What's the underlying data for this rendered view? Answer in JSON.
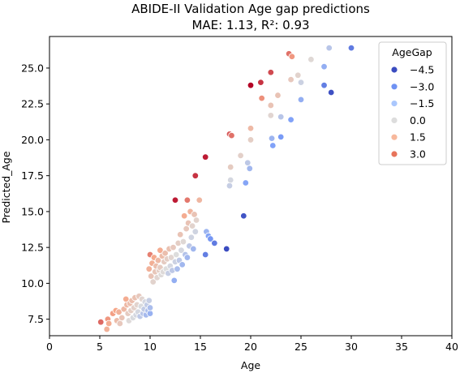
{
  "chart_data": {
    "type": "scatter",
    "title": "ABIDE-II Validation Age gap predictions",
    "subtitle": "MAE: 1.13, R²: 0.93",
    "xlabel": "Age",
    "ylabel": "Predicted_Age",
    "xlim": [
      0,
      40
    ],
    "ylim": [
      6.35,
      27.2
    ],
    "xticks": [
      "0",
      "5",
      "10",
      "15",
      "20",
      "25",
      "30",
      "35",
      "40"
    ],
    "yticks": [
      "7.5",
      "10.0",
      "12.5",
      "15.0",
      "17.5",
      "20.0",
      "22.5",
      "25.0"
    ],
    "grid": false,
    "legend": {
      "title": "AgeGap",
      "placement": "top-right",
      "entries": [
        {
          "label": "−4.5",
          "color": "#3b4cc0"
        },
        {
          "label": "−3.0",
          "color": "#6f92f3"
        },
        {
          "label": "−1.5",
          "color": "#aac7fd"
        },
        {
          "label": "0.0",
          "color": "#dddddd"
        },
        {
          "label": "1.5",
          "color": "#f7b89c"
        },
        {
          "label": "3.0",
          "color": "#e7745b"
        }
      ]
    },
    "hue_range": [
      -4.8,
      3.6
    ],
    "points": [
      [
        5.1,
        7.3,
        2.3
      ],
      [
        5.7,
        6.8,
        1.1
      ],
      [
        5.8,
        7.5,
        1.7
      ],
      [
        5.9,
        7.2,
        1.3
      ],
      [
        6.3,
        7.9,
        1.6
      ],
      [
        6.6,
        8.1,
        1.5
      ],
      [
        6.7,
        7.4,
        0.7
      ],
      [
        6.9,
        8.0,
        1.1
      ],
      [
        7.0,
        7.2,
        0.2
      ],
      [
        7.2,
        7.6,
        0.4
      ],
      [
        7.4,
        8.2,
        0.8
      ],
      [
        7.6,
        8.9,
        1.3
      ],
      [
        7.7,
        8.5,
        0.8
      ],
      [
        7.8,
        7.9,
        0.1
      ],
      [
        7.9,
        7.4,
        -0.5
      ],
      [
        8.0,
        8.6,
        0.6
      ],
      [
        8.1,
        8.1,
        0.0
      ],
      [
        8.2,
        8.8,
        0.6
      ],
      [
        8.3,
        7.6,
        -0.7
      ],
      [
        8.4,
        8.3,
        -0.1
      ],
      [
        8.5,
        9.0,
        0.5
      ],
      [
        8.6,
        7.8,
        -0.8
      ],
      [
        8.7,
        8.5,
        -0.2
      ],
      [
        8.8,
        8.0,
        -0.8
      ],
      [
        8.9,
        9.1,
        0.2
      ],
      [
        9.0,
        7.7,
        -1.3
      ],
      [
        9.1,
        8.4,
        -0.7
      ],
      [
        9.2,
        8.9,
        -0.3
      ],
      [
        9.3,
        7.9,
        -1.4
      ],
      [
        9.4,
        8.2,
        -1.2
      ],
      [
        9.5,
        8.7,
        -0.8
      ],
      [
        9.6,
        7.8,
        -1.8
      ],
      [
        9.7,
        8.5,
        -1.2
      ],
      [
        9.8,
        8.1,
        -1.7
      ],
      [
        9.9,
        8.8,
        -1.1
      ],
      [
        10.0,
        7.9,
        -2.1
      ],
      [
        10.0,
        8.3,
        -1.7
      ],
      [
        9.9,
        11.0,
        1.1
      ],
      [
        10.0,
        12.0,
        2.0
      ],
      [
        10.1,
        10.5,
        0.4
      ],
      [
        10.2,
        11.4,
        1.2
      ],
      [
        10.3,
        10.1,
        -0.2
      ],
      [
        10.4,
        11.8,
        1.4
      ],
      [
        10.5,
        10.8,
        0.3
      ],
      [
        10.6,
        11.2,
        0.6
      ],
      [
        10.7,
        10.4,
        -0.3
      ],
      [
        10.8,
        11.6,
        0.8
      ],
      [
        10.9,
        10.9,
        0.0
      ],
      [
        11.0,
        12.3,
        1.3
      ],
      [
        11.0,
        11.1,
        0.1
      ],
      [
        11.1,
        10.6,
        -0.5
      ],
      [
        11.2,
        11.9,
        0.7
      ],
      [
        11.3,
        10.8,
        -0.5
      ],
      [
        11.4,
        11.5,
        0.1
      ],
      [
        11.5,
        12.1,
        0.6
      ],
      [
        11.6,
        11.0,
        -0.6
      ],
      [
        11.7,
        11.7,
        0.0
      ],
      [
        11.8,
        10.7,
        -1.1
      ],
      [
        11.9,
        12.4,
        0.5
      ],
      [
        12.0,
        11.2,
        -0.8
      ],
      [
        12.1,
        11.8,
        -0.3
      ],
      [
        12.2,
        10.9,
        -1.3
      ],
      [
        12.3,
        12.5,
        0.2
      ],
      [
        12.4,
        10.2,
        -2.2
      ],
      [
        12.5,
        11.5,
        -1.0
      ],
      [
        12.6,
        12.0,
        -0.6
      ],
      [
        12.7,
        11.0,
        -1.7
      ],
      [
        12.8,
        12.8,
        0.0
      ],
      [
        12.9,
        11.6,
        -1.3
      ],
      [
        13.0,
        13.4,
        0.4
      ],
      [
        13.1,
        12.3,
        -0.8
      ],
      [
        13.2,
        11.3,
        -1.9
      ],
      [
        13.3,
        12.9,
        -0.4
      ],
      [
        13.4,
        14.7,
        1.3
      ],
      [
        13.5,
        12.0,
        -1.5
      ],
      [
        13.6,
        13.8,
        0.2
      ],
      [
        13.7,
        11.8,
        -1.9
      ],
      [
        13.8,
        14.2,
        0.4
      ],
      [
        13.9,
        12.6,
        -1.3
      ],
      [
        14.0,
        15.0,
        1.0
      ],
      [
        14.1,
        13.2,
        -0.9
      ],
      [
        14.2,
        14.0,
        -0.2
      ],
      [
        14.3,
        12.4,
        -1.9
      ],
      [
        14.4,
        14.8,
        0.4
      ],
      [
        14.5,
        13.6,
        -0.9
      ],
      [
        14.6,
        14.4,
        -0.2
      ],
      [
        12.5,
        15.8,
        3.3
      ],
      [
        13.7,
        15.8,
        2.1
      ],
      [
        14.5,
        17.5,
        3.0
      ],
      [
        14.9,
        15.8,
        0.9
      ],
      [
        15.5,
        18.8,
        3.3
      ],
      [
        15.5,
        12.0,
        -3.5
      ],
      [
        15.6,
        13.6,
        -2.0
      ],
      [
        15.8,
        13.3,
        -2.5
      ],
      [
        16.0,
        13.1,
        -2.9
      ],
      [
        16.4,
        12.8,
        -3.6
      ],
      [
        17.6,
        12.4,
        -5.2
      ],
      [
        17.9,
        20.4,
        2.5
      ],
      [
        17.9,
        16.8,
        -1.1
      ],
      [
        18.0,
        17.2,
        -0.8
      ],
      [
        18.0,
        18.1,
        0.1
      ],
      [
        18.1,
        20.3,
        2.2
      ],
      [
        19.0,
        18.9,
        -0.1
      ],
      [
        19.3,
        14.7,
        -4.6
      ],
      [
        19.5,
        17.0,
        -2.5
      ],
      [
        19.7,
        18.4,
        -1.3
      ],
      [
        19.9,
        18.0,
        -1.9
      ],
      [
        20.0,
        20.0,
        0.0
      ],
      [
        20.0,
        20.8,
        0.8
      ],
      [
        20.0,
        23.8,
        3.8
      ],
      [
        21.0,
        24.0,
        3.0
      ],
      [
        21.1,
        22.9,
        1.8
      ],
      [
        22.0,
        24.7,
        2.7
      ],
      [
        22.0,
        22.4,
        0.4
      ],
      [
        22.0,
        21.7,
        -0.3
      ],
      [
        22.1,
        20.1,
        -2.0
      ],
      [
        22.2,
        19.6,
        -2.6
      ],
      [
        22.7,
        23.1,
        0.4
      ],
      [
        23.0,
        20.2,
        -2.8
      ],
      [
        23.0,
        21.6,
        -1.4
      ],
      [
        23.8,
        26.0,
        2.2
      ],
      [
        24.0,
        24.2,
        0.2
      ],
      [
        24.0,
        21.4,
        -2.6
      ],
      [
        24.1,
        25.8,
        1.7
      ],
      [
        24.7,
        24.5,
        -0.2
      ],
      [
        25.0,
        24.0,
        -1.0
      ],
      [
        25.0,
        22.8,
        -2.2
      ],
      [
        26.0,
        25.6,
        -0.4
      ],
      [
        27.3,
        23.8,
        -3.5
      ],
      [
        27.3,
        25.1,
        -2.2
      ],
      [
        27.8,
        26.4,
        -1.4
      ],
      [
        28.0,
        23.3,
        -4.7
      ],
      [
        30.0,
        26.4,
        -3.6
      ]
    ]
  }
}
